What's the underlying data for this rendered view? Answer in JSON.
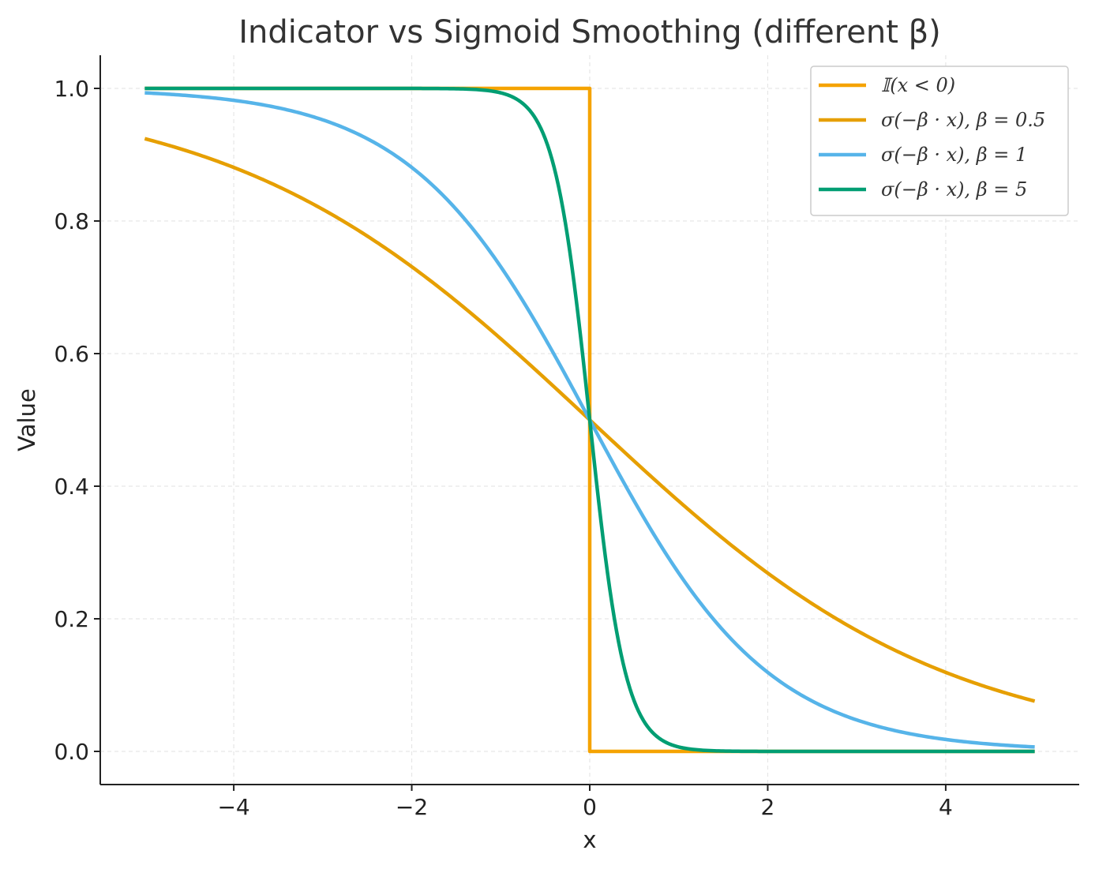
{
  "chart_data": {
    "type": "line",
    "title": "Indicator vs Sigmoid Smoothing (different β)",
    "xlabel": "x",
    "ylabel": "Value",
    "xlim": [
      -5.5,
      5.5
    ],
    "ylim": [
      -0.05,
      1.05
    ],
    "x_ticks": [
      -4,
      -2,
      0,
      2,
      4
    ],
    "x_tick_labels": [
      "−4",
      "−2",
      "0",
      "2",
      "4"
    ],
    "y_ticks": [
      0.0,
      0.2,
      0.4,
      0.6,
      0.8,
      1.0
    ],
    "y_tick_labels": [
      "0.0",
      "0.2",
      "0.4",
      "0.6",
      "0.8",
      "1.0"
    ],
    "x_range": [
      -5,
      5
    ],
    "grid": true,
    "legend_position": "top-right",
    "series": [
      {
        "name": "𝕀(x < 0)",
        "kind": "indicator",
        "color": "#F5A300"
      },
      {
        "name": "σ(−β · x), β = 0.5",
        "kind": "sigmoid",
        "beta": 0.5,
        "color": "#E69F00"
      },
      {
        "name": "σ(−β · x), β = 1",
        "kind": "sigmoid",
        "beta": 1,
        "color": "#56B4E9"
      },
      {
        "name": "σ(−β · x), β = 5",
        "kind": "sigmoid",
        "beta": 5,
        "color": "#009E73"
      }
    ]
  }
}
